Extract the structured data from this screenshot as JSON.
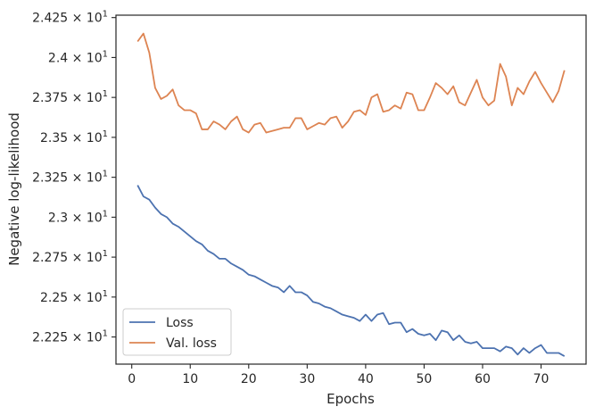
{
  "chart_data": {
    "type": "line",
    "title": "",
    "xlabel": "Epochs",
    "ylabel": "Negative log-likelihood",
    "xlim": [
      -2.7,
      77.7
    ],
    "ylim": [
      22.08,
      24.265
    ],
    "xticks": [
      0,
      10,
      20,
      30,
      40,
      50,
      60,
      70
    ],
    "xtick_labels": [
      "0",
      "10",
      "20",
      "30",
      "40",
      "50",
      "60",
      "70"
    ],
    "yticks": [
      22.25,
      22.5,
      22.75,
      23.0,
      23.25,
      23.5,
      23.75,
      24.0,
      24.25
    ],
    "ytick_labels": [
      {
        "mant": "2.225",
        "base": "10",
        "exp": "1"
      },
      {
        "mant": "2.25",
        "base": "10",
        "exp": "1"
      },
      {
        "mant": "2.275",
        "base": "10",
        "exp": "1"
      },
      {
        "mant": "2.3",
        "base": "10",
        "exp": "1"
      },
      {
        "mant": "2.325",
        "base": "10",
        "exp": "1"
      },
      {
        "mant": "2.35",
        "base": "10",
        "exp": "1"
      },
      {
        "mant": "2.375",
        "base": "10",
        "exp": "1"
      },
      {
        "mant": "2.4",
        "base": "10",
        "exp": "1"
      },
      {
        "mant": "2.425",
        "base": "10",
        "exp": "1"
      }
    ],
    "x_mult": "×",
    "grid": false,
    "legend_position": "lower-left",
    "series": [
      {
        "name": "Loss",
        "color": "#4c72b0",
        "x": [
          1,
          2,
          3,
          4,
          5,
          6,
          7,
          8,
          9,
          10,
          11,
          12,
          13,
          14,
          15,
          16,
          17,
          18,
          19,
          20,
          21,
          22,
          23,
          24,
          25,
          26,
          27,
          28,
          29,
          30,
          31,
          32,
          33,
          34,
          35,
          36,
          37,
          38,
          39,
          40,
          41,
          42,
          43,
          44,
          45,
          46,
          47,
          48,
          49,
          50,
          51,
          52,
          53,
          54,
          55,
          56,
          57,
          58,
          59,
          60,
          61,
          62,
          63,
          64,
          65,
          66,
          67,
          68,
          69,
          70,
          71,
          72,
          73,
          74
        ],
        "y": [
          23.2,
          23.13,
          23.11,
          23.06,
          23.02,
          23.0,
          22.96,
          22.94,
          22.91,
          22.88,
          22.85,
          22.83,
          22.79,
          22.77,
          22.74,
          22.74,
          22.71,
          22.69,
          22.67,
          22.64,
          22.63,
          22.61,
          22.59,
          22.57,
          22.56,
          22.53,
          22.57,
          22.53,
          22.53,
          22.51,
          22.47,
          22.46,
          22.44,
          22.43,
          22.41,
          22.39,
          22.38,
          22.37,
          22.35,
          22.39,
          22.35,
          22.39,
          22.4,
          22.33,
          22.34,
          22.34,
          22.28,
          22.3,
          22.27,
          22.26,
          22.27,
          22.23,
          22.29,
          22.28,
          22.23,
          22.26,
          22.22,
          22.21,
          22.22,
          22.18,
          22.18,
          22.18,
          22.16,
          22.19,
          22.18,
          22.14,
          22.18,
          22.15,
          22.18,
          22.2,
          22.15,
          22.15,
          22.15,
          22.13
        ]
      },
      {
        "name": "Val. loss",
        "color": "#dd8452",
        "x": [
          1,
          2,
          3,
          4,
          5,
          6,
          7,
          8,
          9,
          10,
          11,
          12,
          13,
          14,
          15,
          16,
          17,
          18,
          19,
          20,
          21,
          22,
          23,
          24,
          25,
          26,
          27,
          28,
          29,
          30,
          31,
          32,
          33,
          34,
          35,
          36,
          37,
          38,
          39,
          40,
          41,
          42,
          43,
          44,
          45,
          46,
          47,
          48,
          49,
          50,
          51,
          52,
          53,
          54,
          55,
          56,
          57,
          58,
          59,
          60,
          61,
          62,
          63,
          64,
          65,
          66,
          67,
          68,
          69,
          70,
          71,
          72,
          73,
          74
        ],
        "y": [
          24.1,
          24.15,
          24.03,
          23.81,
          23.74,
          23.76,
          23.8,
          23.7,
          23.67,
          23.67,
          23.65,
          23.55,
          23.55,
          23.6,
          23.58,
          23.55,
          23.6,
          23.63,
          23.55,
          23.53,
          23.58,
          23.59,
          23.53,
          23.54,
          23.55,
          23.56,
          23.56,
          23.62,
          23.62,
          23.55,
          23.57,
          23.59,
          23.58,
          23.62,
          23.63,
          23.56,
          23.6,
          23.66,
          23.67,
          23.64,
          23.75,
          23.77,
          23.66,
          23.67,
          23.7,
          23.68,
          23.78,
          23.77,
          23.67,
          23.67,
          23.75,
          23.84,
          23.81,
          23.77,
          23.82,
          23.72,
          23.7,
          23.78,
          23.86,
          23.75,
          23.7,
          23.73,
          23.96,
          23.88,
          23.7,
          23.81,
          23.77,
          23.85,
          23.91,
          23.84,
          23.78,
          23.72,
          23.79,
          23.92
        ]
      }
    ]
  }
}
